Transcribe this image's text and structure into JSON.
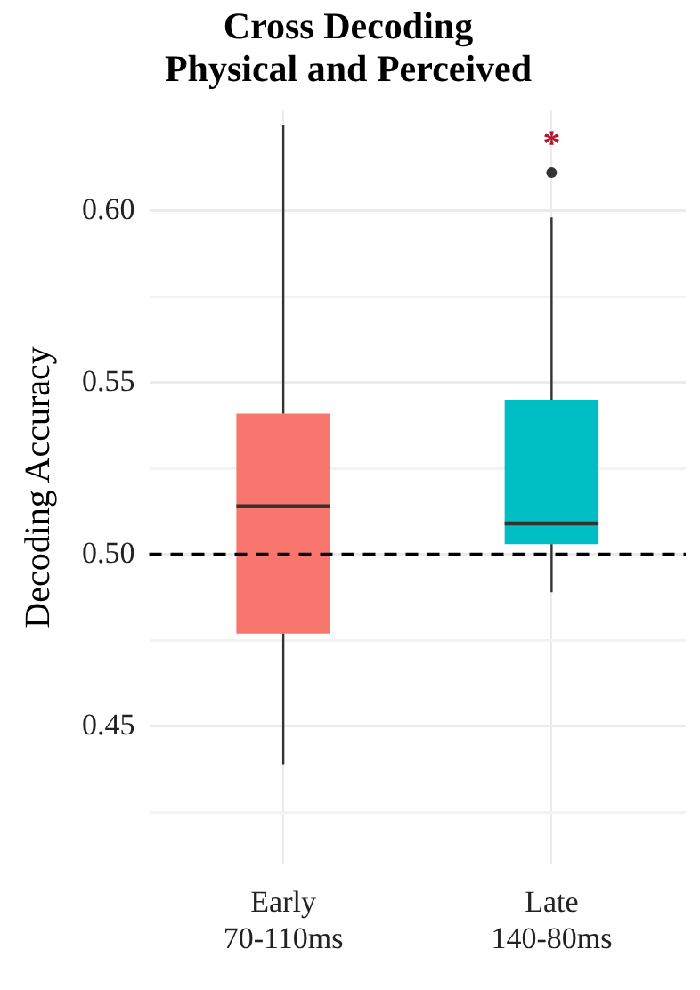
{
  "chart_data": {
    "type": "box",
    "title": "Cross Decoding\nPhysical and Perceived",
    "ylabel": "Decoding Accuracy",
    "categories": [
      "Early\n70-110ms",
      "Late\n140-80ms"
    ],
    "colors": [
      "#f8766d",
      "#00bfc4"
    ],
    "boxes": [
      {
        "low": 0.439,
        "q1": 0.477,
        "median": 0.514,
        "q3": 0.541,
        "high": 0.625
      },
      {
        "low": 0.489,
        "q1": 0.503,
        "median": 0.509,
        "q3": 0.545,
        "high": 0.598,
        "outliers": [
          0.611
        ]
      }
    ],
    "ylim": [
      0.41,
      0.629
    ],
    "yticks": [
      {
        "value": 0.425,
        "label": null
      },
      0.45,
      {
        "value": 0.475,
        "label": null
      },
      {
        "value": 0.5,
        "label": "0.50"
      },
      {
        "value": 0.525,
        "label": null
      },
      0.55,
      {
        "value": 0.575,
        "label": null
      },
      {
        "value": 0.6,
        "label": "0.60"
      }
    ],
    "ref_lines": [
      {
        "axis": "y",
        "value": 0.5,
        "color": "#000000",
        "line_style": "dashed"
      }
    ],
    "annotations": [
      "*"
    ],
    "grid": true,
    "legend": false
  }
}
